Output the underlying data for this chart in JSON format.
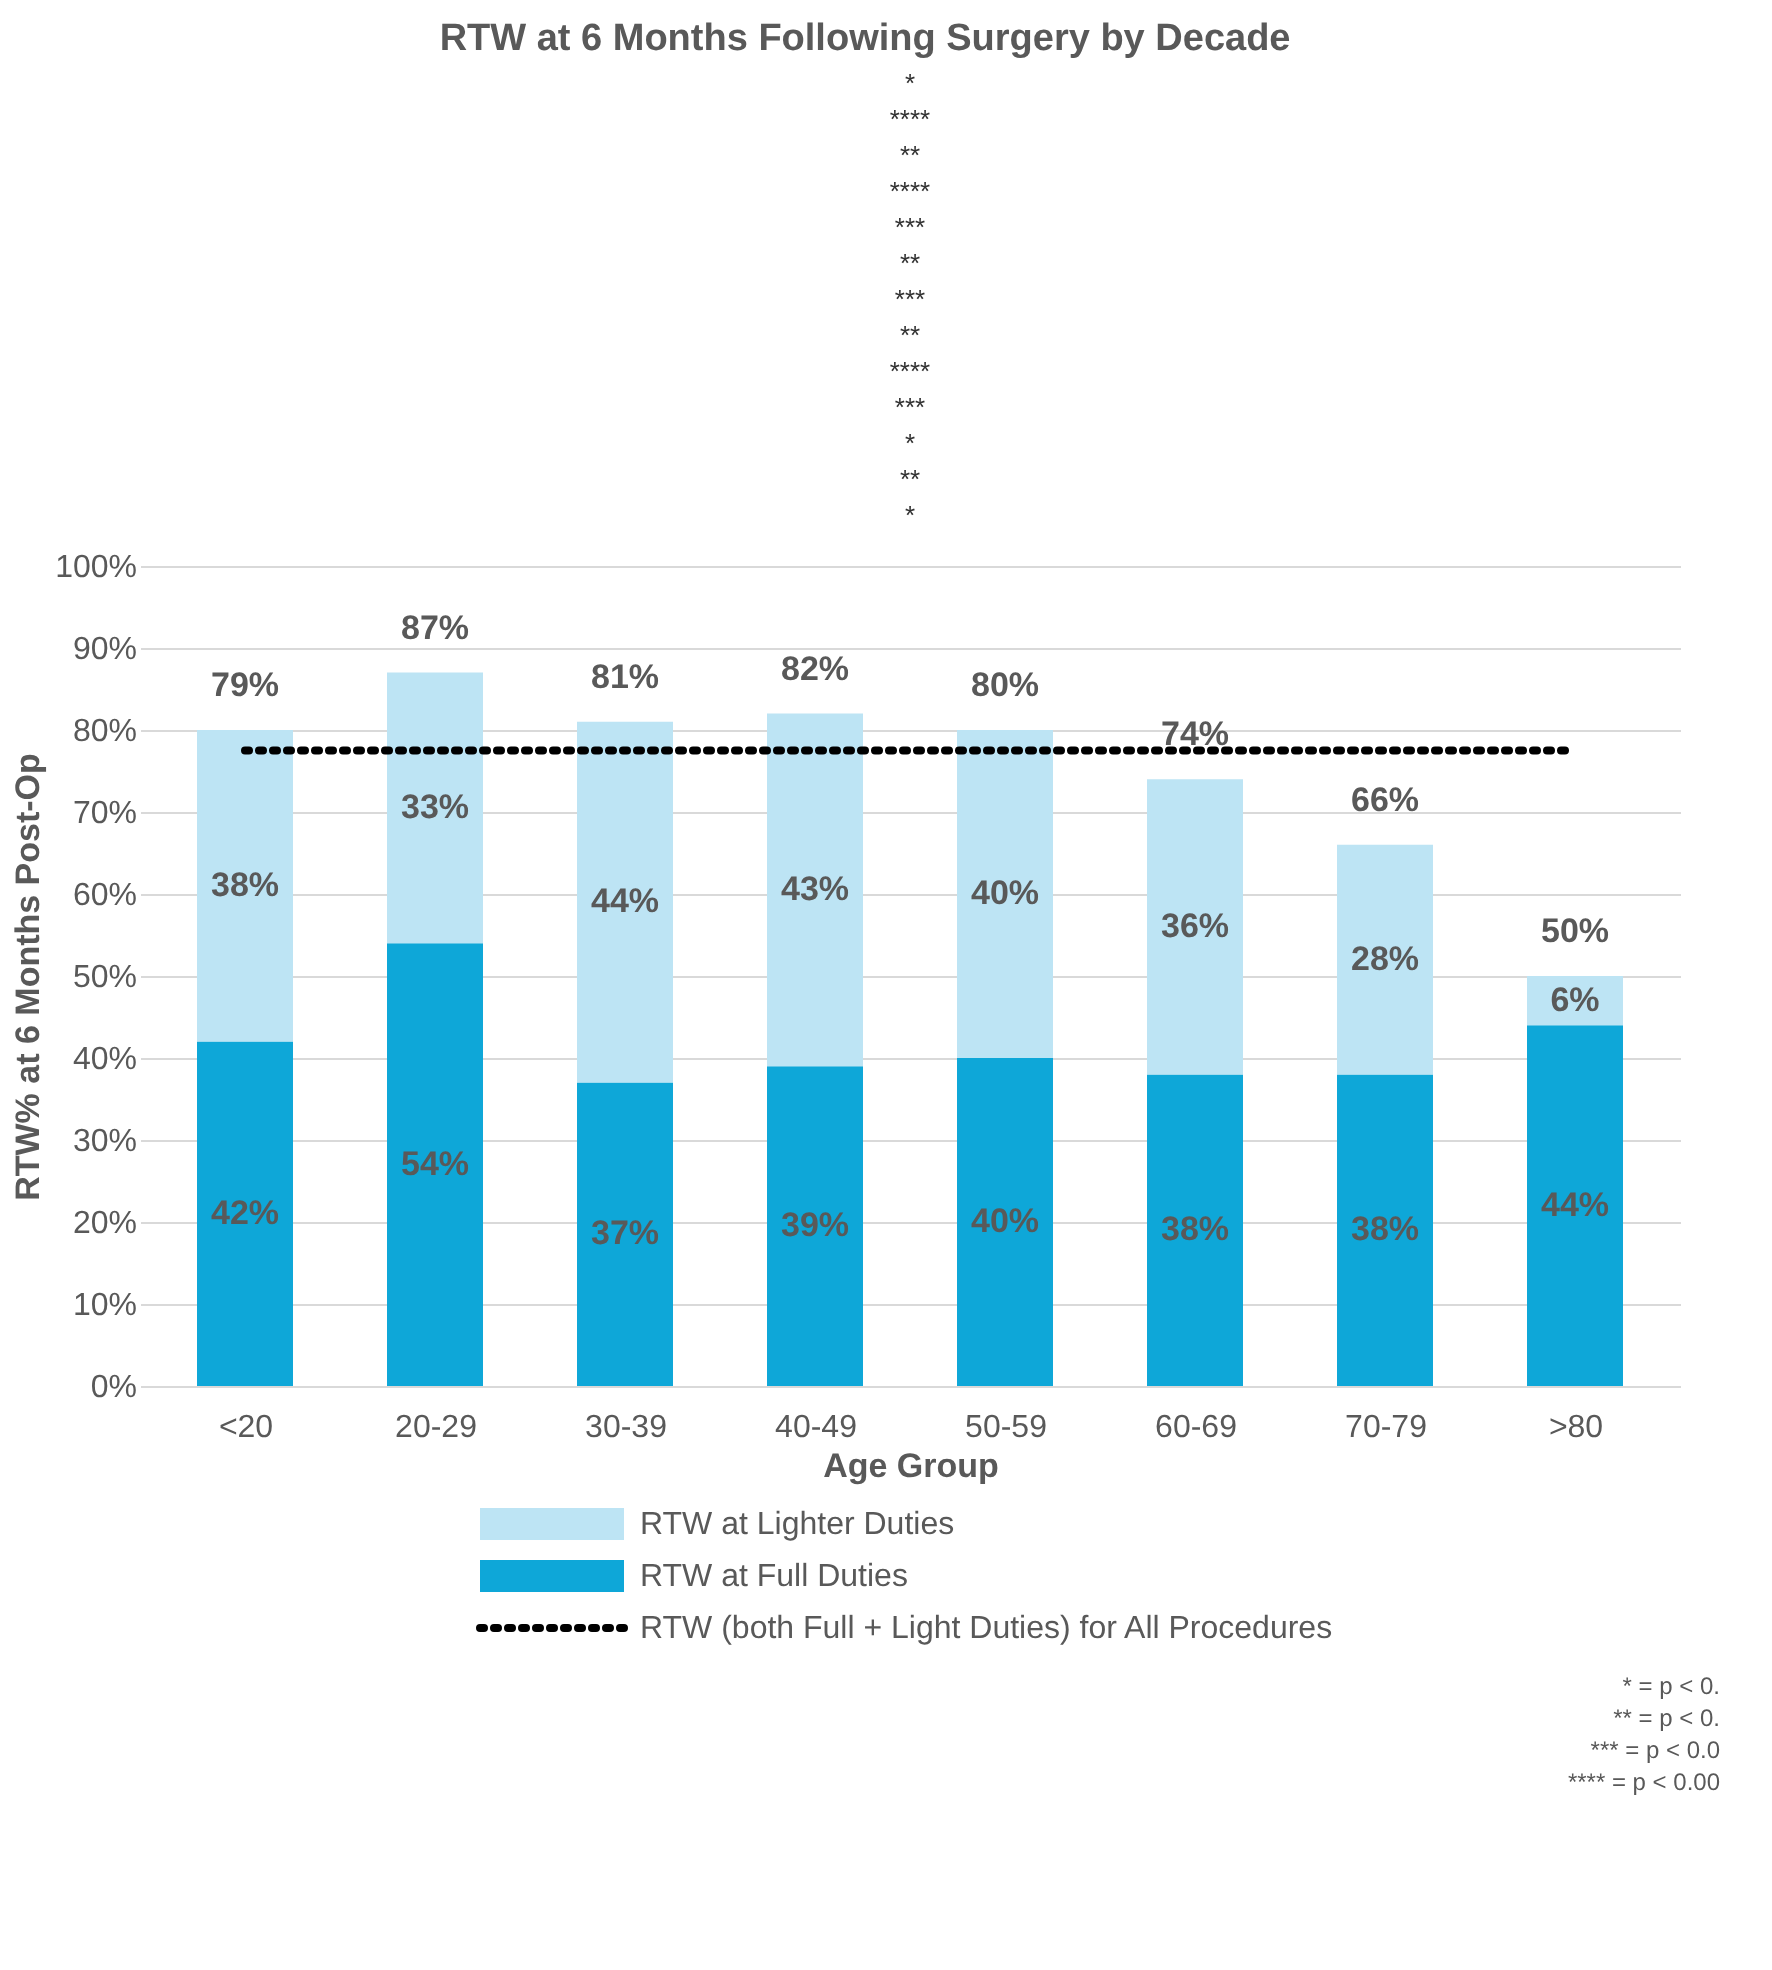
{
  "chart_data": {
    "type": "bar",
    "stacked": true,
    "title": "RTW at 6 Months Following Surgery by Decade",
    "xlabel": "Age Group",
    "ylabel": "RTW% at 6 Months Post-Op",
    "categories": [
      "<20",
      "20-29",
      "30-39",
      "40-49",
      "50-59",
      "60-69",
      "70-79",
      ">80"
    ],
    "series": [
      {
        "name": "RTW at Full Duties",
        "color": "#0ea7d8",
        "values": [
          42,
          54,
          37,
          39,
          40,
          38,
          38,
          44
        ],
        "value_labels": [
          "42%",
          "54%",
          "37%",
          "39%",
          "40%",
          "38%",
          "38%",
          "44%"
        ]
      },
      {
        "name": "RTW at Lighter Duties",
        "color": "#bde4f4",
        "values": [
          38,
          33,
          44,
          43,
          40,
          36,
          28,
          6
        ],
        "value_labels": [
          "38%",
          "33%",
          "44%",
          "43%",
          "40%",
          "36%",
          "28%",
          "6%"
        ]
      }
    ],
    "totals": [
      "79%",
      "87%",
      "81%",
      "82%",
      "80%",
      "74%",
      "66%",
      "50%"
    ],
    "ylim": [
      0,
      100
    ],
    "yticks": [
      {
        "value": 0,
        "label": "0%"
      },
      {
        "value": 10,
        "label": "10%"
      },
      {
        "value": 20,
        "label": "20%"
      },
      {
        "value": 30,
        "label": "30%"
      },
      {
        "value": 40,
        "label": "40%"
      },
      {
        "value": 50,
        "label": "50%"
      },
      {
        "value": 60,
        "label": "60%"
      },
      {
        "value": 70,
        "label": "70%"
      },
      {
        "value": 80,
        "label": "80%"
      },
      {
        "value": 90,
        "label": "90%"
      },
      {
        "value": 100,
        "label": "100%"
      }
    ],
    "grid": "y",
    "legend": "bottom",
    "ref_lines": [
      {
        "axis": "y",
        "value": 77.5,
        "label": "RTW (both Full + Light Duties) for All Procedures",
        "color": "#000000",
        "line_style": "dotted"
      }
    ],
    "annotations": [
      "*",
      "****",
      "**",
      "****",
      "***",
      "**",
      "***",
      "**",
      "****",
      "***",
      "*",
      "**",
      "*",
      "* = p < 0.",
      "** = p < 0.",
      "*** = p < 0.0",
      "**** = p < 0.00"
    ]
  }
}
